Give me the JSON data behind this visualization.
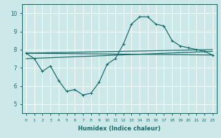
{
  "xlabel": "Humidex (Indice chaleur)",
  "xlim": [
    -0.5,
    23.5
  ],
  "ylim": [
    4.5,
    10.5
  ],
  "xticks": [
    0,
    1,
    2,
    3,
    4,
    5,
    6,
    7,
    8,
    9,
    10,
    11,
    12,
    13,
    14,
    15,
    16,
    17,
    18,
    19,
    20,
    21,
    22,
    23
  ],
  "yticks": [
    5,
    6,
    7,
    8,
    9,
    10
  ],
  "bg_color": "#cce8e8",
  "line_color": "#1a6b6b",
  "grid_color": "#ffffff",
  "series1_x": [
    0,
    1,
    2,
    3,
    4,
    5,
    6,
    7,
    8,
    9,
    10,
    11,
    12,
    13,
    14,
    15,
    16,
    17,
    18,
    19,
    20,
    21,
    22,
    23
  ],
  "series1_y": [
    7.8,
    7.5,
    6.8,
    7.1,
    6.3,
    5.7,
    5.8,
    5.5,
    5.6,
    6.2,
    7.2,
    7.5,
    8.3,
    9.4,
    9.8,
    9.8,
    9.4,
    9.3,
    8.5,
    8.2,
    8.1,
    8.0,
    7.9,
    7.7
  ],
  "series2_x": [
    0,
    23
  ],
  "series2_y": [
    7.8,
    8.0
  ],
  "series3_x": [
    0,
    23
  ],
  "series3_y": [
    7.8,
    7.7
  ],
  "series4_x": [
    0,
    23
  ],
  "series4_y": [
    7.5,
    7.9
  ]
}
